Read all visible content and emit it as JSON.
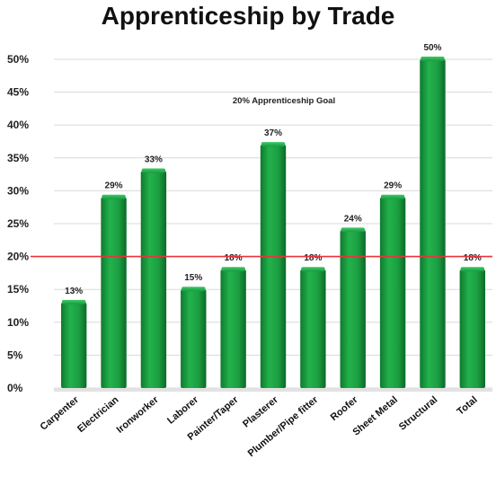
{
  "chart_data": {
    "type": "bar",
    "title": "Apprenticeship by Trade",
    "categories": [
      "Carpenter",
      "Electrician",
      "Ironworker",
      "Laborer",
      "Painter/Taper",
      "Plasterer",
      "Plumber/Pipe fitter",
      "Roofer",
      "Sheet Metal",
      "Structural",
      "Total"
    ],
    "values": [
      13,
      29,
      33,
      15,
      18,
      37,
      18,
      24,
      29,
      50,
      18
    ],
    "data_labels": [
      "13%",
      "29%",
      "33%",
      "15%",
      "18%",
      "37%",
      "18%",
      "24%",
      "29%",
      "50%",
      "18%"
    ],
    "ylim": [
      0,
      50
    ],
    "yticks": [
      {
        "value": 0,
        "label": "0%"
      },
      {
        "value": 5,
        "label": "5%"
      },
      {
        "value": 10,
        "label": "10%"
      },
      {
        "value": 15,
        "label": "15%"
      },
      {
        "value": 20,
        "label": "20%"
      },
      {
        "value": 25,
        "label": "25%"
      },
      {
        "value": 30,
        "label": "30%"
      },
      {
        "value": 35,
        "label": "35%"
      },
      {
        "value": 40,
        "label": "40%"
      },
      {
        "value": 45,
        "label": "45%"
      },
      {
        "value": 50,
        "label": "50%"
      }
    ],
    "reference_line": {
      "value": 20,
      "label": "20% Apprenticeship  Goal",
      "color": "#e8343a"
    },
    "bar_color": "#1fa845",
    "grid": true,
    "legend": "none"
  }
}
